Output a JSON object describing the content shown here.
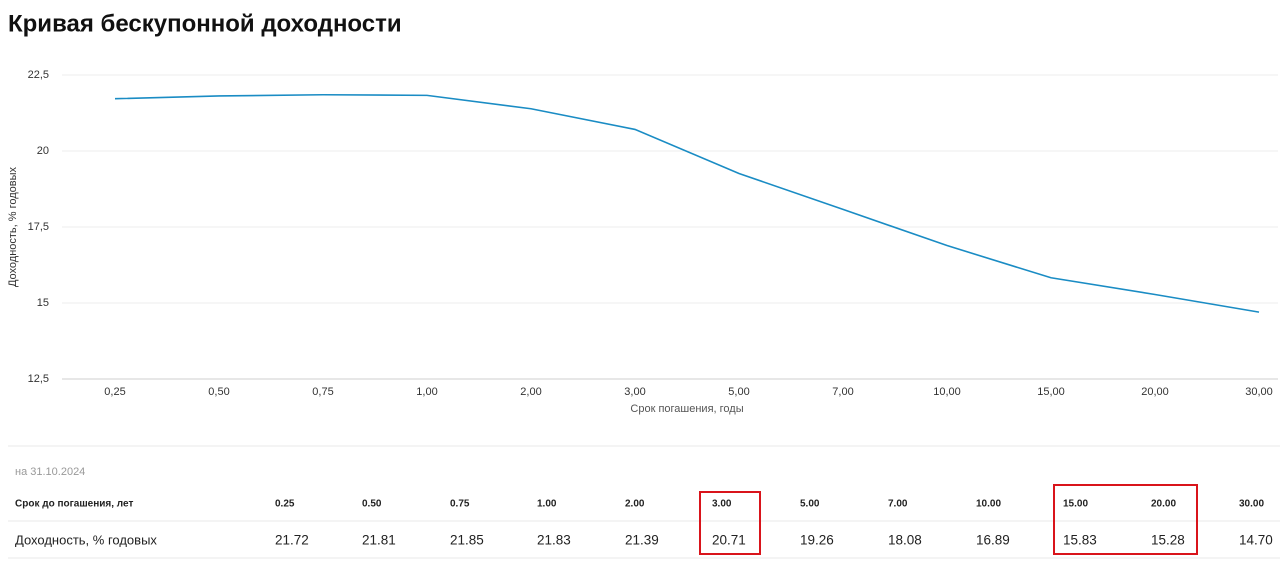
{
  "chart_data": {
    "type": "line",
    "title": "Кривая бескупонной доходности",
    "categories": [
      "0,25",
      "0,50",
      "0,75",
      "1,00",
      "2,00",
      "3,00",
      "5,00",
      "7,00",
      "10,00",
      "15,00",
      "20,00",
      "30,00"
    ],
    "series": [
      {
        "name": "Доходность",
        "color": "#1a8cc4",
        "values": [
          21.72,
          21.81,
          21.85,
          21.83,
          21.39,
          20.71,
          19.26,
          18.08,
          16.89,
          15.83,
          15.28,
          14.7
        ]
      }
    ],
    "ylim": [
      12.5,
      22.5
    ],
    "yticks": [
      {
        "value": 12.5,
        "label": "12,5"
      },
      15,
      {
        "value": 17.5,
        "label": "17,5"
      },
      20,
      {
        "value": 22.5,
        "label": "22,5"
      }
    ],
    "ylabel": "Доходность, % годовых",
    "xlabel": "Срок погашения, годы",
    "grid": true
  },
  "table": {
    "date": "на 31.10.2024",
    "rows": [
      [
        "Срок до погашения, лет",
        "0.25",
        "0.50",
        "0.75",
        "1.00",
        "2.00",
        "3.00",
        "5.00",
        "7.00",
        "10.00",
        "15.00",
        "20.00",
        "30.00"
      ],
      [
        "Доходность, % годовых",
        "21.72",
        "21.81",
        "21.85",
        "21.83",
        "21.39",
        "20.71",
        "19.26",
        "18.08",
        "16.89",
        "15.83",
        "15.28",
        "14.70"
      ]
    ]
  }
}
